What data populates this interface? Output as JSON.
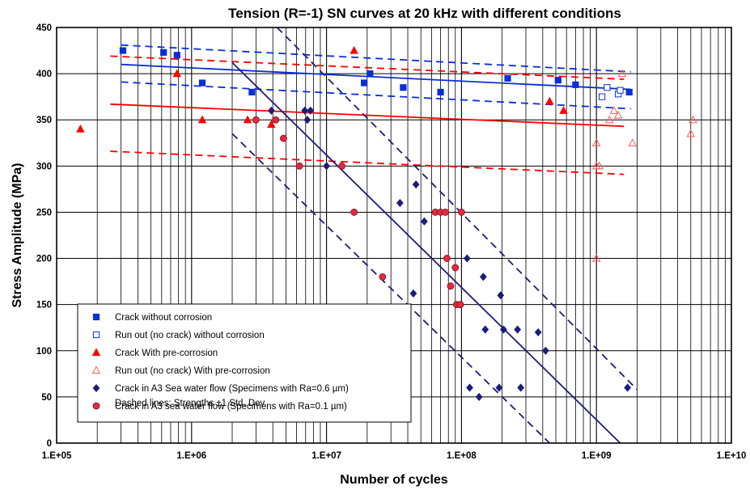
{
  "chart_data": {
    "type": "scatter",
    "title": "Tension (R=-1) SN curves at 20 kHz with different conditions",
    "xlabel": "Number of cycles",
    "ylabel": "Stress Amplitude (MPa)",
    "x_scale": "log",
    "xlim": [
      100000,
      10000000000
    ],
    "ylim": [
      0,
      450
    ],
    "x_ticks": [
      "1.E+05",
      "1.E+06",
      "1.E+07",
      "1.E+08",
      "1.E+09",
      "1.E+10"
    ],
    "y_ticks": [
      0,
      50,
      100,
      150,
      200,
      250,
      300,
      350,
      400,
      450
    ],
    "grid": true,
    "legend_position": "bottom-left",
    "legend_note": "Dashed lines: Strengths ±1 Std. Dev.",
    "series": [
      {
        "name": "Crack without corrosion",
        "marker": "filled-square",
        "color": "#0a2fd6",
        "points": [
          [
            310000,
            425
          ],
          [
            620000,
            423
          ],
          [
            780000,
            420
          ],
          [
            1200000,
            390
          ],
          [
            2800000,
            380
          ],
          [
            19000000,
            390
          ],
          [
            21000000,
            400
          ],
          [
            37000000,
            385
          ],
          [
            70000000,
            380
          ],
          [
            220000000,
            395
          ],
          [
            520000000,
            393
          ],
          [
            700000000,
            388
          ],
          [
            1750000000,
            380
          ]
        ]
      },
      {
        "name": "Run out (no crack) without corrosion",
        "marker": "open-square",
        "color": "#0a2fd6",
        "points": [
          [
            1100000000,
            375
          ],
          [
            1200000000,
            385
          ],
          [
            1450000000,
            378
          ],
          [
            1500000000,
            382
          ]
        ]
      },
      {
        "name": "Crack With pre-corrosion",
        "marker": "filled-triangle",
        "color": "#ff0000",
        "points": [
          [
            150000,
            340
          ],
          [
            780000,
            400
          ],
          [
            1200000,
            350
          ],
          [
            2600000,
            350
          ],
          [
            3900000,
            345
          ],
          [
            16000000,
            425
          ],
          [
            450000000,
            370
          ],
          [
            570000000,
            360
          ]
        ]
      },
      {
        "name": "Run out (no crack) With pre-corrosion",
        "marker": "open-triangle",
        "color": "#ff5a5a",
        "points": [
          [
            1000000000,
            200
          ],
          [
            1000000000,
            300
          ],
          [
            1050000000,
            300
          ],
          [
            1000000000,
            325
          ],
          [
            1250000000,
            350
          ],
          [
            1350000000,
            360
          ],
          [
            1450000000,
            355
          ],
          [
            1550000000,
            400
          ],
          [
            1850000000,
            325
          ],
          [
            5000000000,
            335
          ],
          [
            5200000000,
            350
          ]
        ]
      },
      {
        "name": "Crack in A3 Sea water flow (Specimens with Ra=0.6 µm)",
        "marker": "filled-diamond",
        "color": "#1c1c7a",
        "points": [
          [
            3900000,
            360
          ],
          [
            6900000,
            360
          ],
          [
            7200000,
            350
          ],
          [
            7600000,
            360
          ],
          [
            10000000,
            300
          ],
          [
            35000000,
            260
          ],
          [
            44000000,
            162
          ],
          [
            46000000,
            280
          ],
          [
            53000000,
            240
          ],
          [
            110000000,
            200
          ],
          [
            115000000,
            60
          ],
          [
            135000000,
            50
          ],
          [
            145000000,
            180
          ],
          [
            150000000,
            123
          ],
          [
            190000000,
            60
          ],
          [
            195000000,
            160
          ],
          [
            205000000,
            123
          ],
          [
            260000000,
            123
          ],
          [
            275000000,
            60
          ],
          [
            370000000,
            120
          ],
          [
            420000000,
            100
          ],
          [
            1700000000,
            60
          ]
        ]
      },
      {
        "name": "Crack in A3 sea water flow (Specimens with Ra=0.1 µm)",
        "marker": "filled-circle",
        "color": "#e8283c",
        "points": [
          [
            3000000,
            350
          ],
          [
            4200000,
            350
          ],
          [
            4800000,
            330
          ],
          [
            6300000,
            300
          ],
          [
            13000000,
            300
          ],
          [
            16000000,
            250
          ],
          [
            26000000,
            180
          ],
          [
            64000000,
            250
          ],
          [
            70000000,
            250
          ],
          [
            76000000,
            250
          ],
          [
            78000000,
            200
          ],
          [
            83000000,
            170
          ],
          [
            90000000,
            190
          ],
          [
            92000000,
            150
          ],
          [
            98000000,
            150
          ],
          [
            100000000,
            250
          ]
        ]
      }
    ],
    "fit_lines": [
      {
        "color": "#0a2fd6",
        "style": "solid",
        "x": [
          300000,
          1800000000
        ],
        "y": [
          410,
          383
        ]
      },
      {
        "color": "#0a2fd6",
        "style": "dashed",
        "x": [
          300000,
          1800000000
        ],
        "y": [
          431,
          402
        ]
      },
      {
        "color": "#0a2fd6",
        "style": "dashed",
        "x": [
          300000,
          1800000000
        ],
        "y": [
          391,
          362
        ]
      },
      {
        "color": "#ff0000",
        "style": "solid",
        "x": [
          250000,
          1600000000
        ],
        "y": [
          367,
          343
        ]
      },
      {
        "color": "#ff0000",
        "style": "dashed",
        "x": [
          250000,
          1600000000
        ],
        "y": [
          419,
          394
        ]
      },
      {
        "color": "#ff0000",
        "style": "dashed",
        "x": [
          250000,
          1600000000
        ],
        "y": [
          316,
          291
        ]
      },
      {
        "color": "#1c1c7a",
        "style": "solid",
        "x": [
          2000000,
          1500000000
        ],
        "y": [
          412,
          0
        ]
      },
      {
        "color": "#1c1c7a",
        "style": "dashed",
        "x": [
          4300000,
          2000000000
        ],
        "y": [
          450,
          58
        ]
      },
      {
        "color": "#1c1c7a",
        "style": "dashed",
        "x": [
          2000000,
          450000000
        ],
        "y": [
          335,
          0
        ]
      }
    ]
  }
}
